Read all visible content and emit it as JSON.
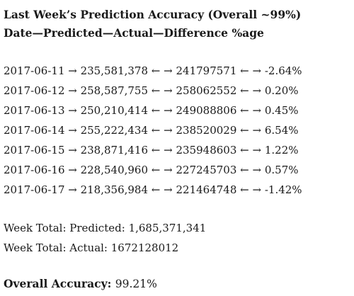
{
  "title": "Last Week’s Prediction Accuracy (Overall ~99%)",
  "columns_line": "Date—Predicted—Actual—Difference %age",
  "rows": [
    {
      "date": "2017-06-11",
      "predicted": "235,581,378",
      "actual": "241797571",
      "difference": "-2.64%"
    },
    {
      "date": "2017-06-12",
      "predicted": "258,587,755",
      "actual": "258062552",
      "difference": "0.20%"
    },
    {
      "date": "2017-06-13",
      "predicted": "250,210,414",
      "actual": "249088806",
      "difference": "0.45%"
    },
    {
      "date": "2017-06-14",
      "predicted": "255,222,434",
      "actual": "238520029",
      "difference": "6.54%"
    },
    {
      "date": "2017-06-15",
      "predicted": "238,871,416",
      "actual": "235948603",
      "difference": "1.22%"
    },
    {
      "date": "2017-06-16",
      "predicted": "228,540,960",
      "actual": "227245703",
      "difference": "0.57%"
    },
    {
      "date": "2017-06-17",
      "predicted": "218,356,984",
      "actual": "221464748",
      "difference": "-1.42%"
    }
  ],
  "separators": {
    "after_date": " → ",
    "after_predicted": " ← → ",
    "after_actual": " ← → "
  },
  "totals": {
    "predicted_label": "Week Total: Predicted:",
    "predicted_value": "1,685,371,341",
    "actual_label": "Week Total: Actual:",
    "actual_value": "1672128012"
  },
  "overall": {
    "label": "Overall Accuracy:",
    "value": "99.21%"
  }
}
